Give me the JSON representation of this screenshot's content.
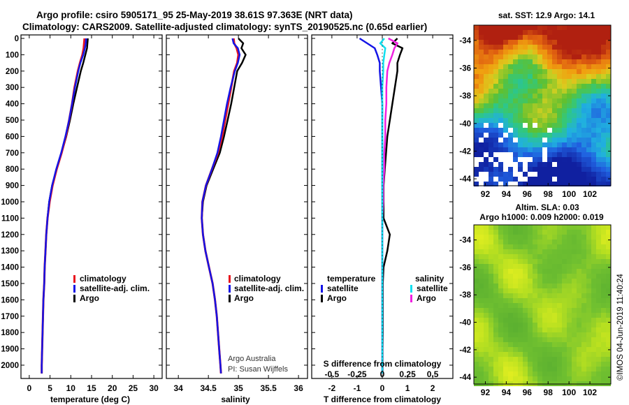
{
  "title": {
    "line1": "Argo profile: csiro 5905171_95 25-May-2019 38.61S 97.363E (NRT data)",
    "line2": "Climatology: CARS2009. Satellite-adjusted climatology: synTS_20190525.nc (0.65d earlier)"
  },
  "colors": {
    "climatology": "#e8141e",
    "satellite": "#1414e6",
    "argo": "#000000",
    "sat_salinity": "#10e0f0",
    "argo_salinity": "#f020e0"
  },
  "depth_ticks": [
    "0",
    "100",
    "200",
    "300",
    "400",
    "500",
    "600",
    "700",
    "800",
    "900",
    "1000",
    "1100",
    "1200",
    "1300",
    "1400",
    "1500",
    "1600",
    "1700",
    "1800",
    "1900",
    "2000"
  ],
  "legend": {
    "climatology": "climatology",
    "satellite_adj": "satellite-adj. clim.",
    "argo": "Argo",
    "temperature": "temperature",
    "salinity": "salinity",
    "satellite": "satellite"
  },
  "credits": {
    "line1": "Argo Australia",
    "line2": "PI: Susan Wijffels"
  },
  "imos_stamp": "©IMOS 04-Jun-2019 11:40:24",
  "chart_data": [
    {
      "type": "line",
      "title": "",
      "xlabel": "temperature (deg C)",
      "ylabel": "",
      "xlim": [
        -2,
        32
      ],
      "ylim": [
        2060,
        0
      ],
      "xticks": [
        "0",
        "5",
        "10",
        "15",
        "20",
        "25",
        "30"
      ],
      "depth": [
        0,
        30,
        60,
        100,
        150,
        200,
        300,
        400,
        500,
        600,
        700,
        800,
        900,
        1000,
        1100,
        1200,
        1300,
        1400,
        1500,
        1600,
        1700,
        1800,
        1900,
        2000,
        2050
      ],
      "series": [
        {
          "name": "climatology",
          "values": [
            13.3,
            13.2,
            13.1,
            12.8,
            12.2,
            11.7,
            10.9,
            10.3,
            9.6,
            8.8,
            7.8,
            6.6,
            5.6,
            4.9,
            4.4,
            4.1,
            3.9,
            3.7,
            3.6,
            3.4,
            3.3,
            3.2,
            3.1,
            3.0,
            3.0
          ]
        },
        {
          "name": "satellite-adj. clim.",
          "values": [
            13.7,
            13.6,
            13.4,
            13.0,
            12.3,
            11.8,
            11.0,
            10.3,
            9.6,
            8.7,
            7.7,
            6.5,
            5.5,
            4.8,
            4.4,
            4.1,
            3.9,
            3.7,
            3.6,
            3.4,
            3.3,
            3.2,
            3.1,
            3.0,
            3.0
          ]
        },
        {
          "name": "Argo",
          "values": [
            14.1,
            14.0,
            13.9,
            13.5,
            13.0,
            12.4,
            11.5,
            10.6,
            9.8,
            8.9,
            7.8,
            6.6,
            5.5,
            4.8,
            4.4,
            4.1,
            3.9,
            3.7,
            3.6,
            3.4,
            3.3,
            3.2,
            3.1,
            3.0,
            3.0
          ]
        }
      ]
    },
    {
      "type": "line",
      "title": "",
      "xlabel": "salinity",
      "ylabel": "",
      "xlim": [
        33.8,
        36.15
      ],
      "ylim": [
        2060,
        0
      ],
      "xticks": [
        "34",
        "34.5",
        "35",
        "35.5",
        "36"
      ],
      "depth": [
        0,
        30,
        60,
        100,
        150,
        200,
        300,
        400,
        500,
        600,
        700,
        800,
        900,
        1000,
        1100,
        1200,
        1300,
        1400,
        1500,
        1600,
        1700,
        1800,
        1900,
        2000,
        2050
      ],
      "series": [
        {
          "name": "climatology",
          "values": [
            34.92,
            34.93,
            34.97,
            35.0,
            34.98,
            34.93,
            34.88,
            34.83,
            34.78,
            34.73,
            34.66,
            34.56,
            34.46,
            34.4,
            34.39,
            34.41,
            34.45,
            34.51,
            34.57,
            34.61,
            34.64,
            34.66,
            34.68,
            34.7,
            34.71
          ]
        },
        {
          "name": "satellite-adj. clim.",
          "values": [
            34.9,
            34.92,
            34.99,
            35.02,
            34.99,
            34.94,
            34.87,
            34.81,
            34.76,
            34.71,
            34.65,
            34.56,
            34.46,
            34.4,
            34.39,
            34.41,
            34.45,
            34.51,
            34.57,
            34.61,
            34.64,
            34.66,
            34.68,
            34.7,
            34.71
          ]
        },
        {
          "name": "Argo",
          "values": [
            35.0,
            35.08,
            35.05,
            35.12,
            35.06,
            34.98,
            34.93,
            34.88,
            34.82,
            34.76,
            34.69,
            34.58,
            34.47,
            34.41,
            34.39,
            34.41,
            34.45,
            34.51,
            34.57,
            34.61,
            34.64,
            34.66,
            34.68,
            34.7,
            34.71
          ]
        }
      ]
    },
    {
      "type": "line",
      "title": "",
      "xlabel": "T difference from climatology",
      "x2label": "S difference from climatology",
      "ylabel": "",
      "xlim": [
        -2.8,
        2.8
      ],
      "ylim": [
        2060,
        0
      ],
      "xticks": [
        "-2",
        "-1",
        "0",
        "1",
        "2"
      ],
      "x2ticks": [
        "-0.5",
        "-0.25",
        "0",
        "0.25",
        "0.5"
      ],
      "depth": [
        0,
        30,
        60,
        100,
        150,
        200,
        300,
        400,
        500,
        600,
        700,
        800,
        900,
        1000,
        1100,
        1200,
        1300,
        1400,
        1500,
        1600,
        1700,
        1800,
        1900,
        2000,
        2050
      ],
      "series": [
        {
          "name": "temperature satellite",
          "values": [
            -0.9,
            -0.6,
            -0.3,
            -0.2,
            -0.1,
            -0.1,
            -0.05,
            0,
            0,
            0,
            0,
            0,
            0,
            0,
            0,
            0,
            0,
            0,
            0,
            0,
            0,
            0,
            0,
            0,
            0
          ]
        },
        {
          "name": "temperature Argo",
          "values": [
            0.6,
            0.4,
            0.8,
            0.7,
            0.6,
            0.6,
            0.5,
            0.4,
            0.3,
            0.2,
            0.15,
            0.1,
            0.05,
            0.05,
            0.05,
            0.3,
            0.2,
            0.05,
            0.02,
            0.02,
            0.02,
            0.02,
            0.01,
            0.01,
            0.01
          ]
        },
        {
          "name": "salinity satellite",
          "values": [
            0.02,
            -0.02,
            0.03,
            0.02,
            0.01,
            0.01,
            0.0,
            0.0,
            0.0,
            0.0,
            0.0,
            0.0,
            0.0,
            0.0,
            0.0,
            0.0,
            0.0,
            0.0,
            0.0,
            0.0,
            0.0,
            0.0,
            0.0,
            0.0,
            0.0
          ]
        },
        {
          "name": "salinity Argo",
          "values": [
            0.06,
            0.15,
            0.12,
            0.1,
            0.07,
            0.05,
            0.04,
            0.04,
            0.03,
            0.03,
            0.02,
            0.02,
            0.01,
            0.01,
            0.0,
            0.0,
            0.0,
            0.0,
            0.0,
            0.0,
            0.0,
            0.0,
            0.0,
            0.0,
            0.0
          ]
        }
      ]
    },
    {
      "type": "heatmap",
      "title": "sat. SST: 12.9 Argo: 14.1",
      "xlim": [
        90.9,
        104
      ],
      "ylim": [
        -44.5,
        -32.9
      ],
      "xticks": [
        "92",
        "94",
        "96",
        "98",
        "100",
        "102"
      ],
      "yticks": [
        "-34",
        "-36",
        "-38",
        "-40",
        "-42",
        "-44"
      ]
    },
    {
      "type": "heatmap",
      "title": "Altim. SLA: 0.03",
      "subtitle": "Argo h1000: 0.009 h2000: 0.019",
      "xlim": [
        90.9,
        104
      ],
      "ylim": [
        -44.5,
        -32.9
      ],
      "xticks": [
        "92",
        "94",
        "96",
        "98",
        "100",
        "102"
      ],
      "yticks": [
        "-34",
        "-36",
        "-38",
        "-40",
        "-42",
        "-44"
      ]
    }
  ]
}
